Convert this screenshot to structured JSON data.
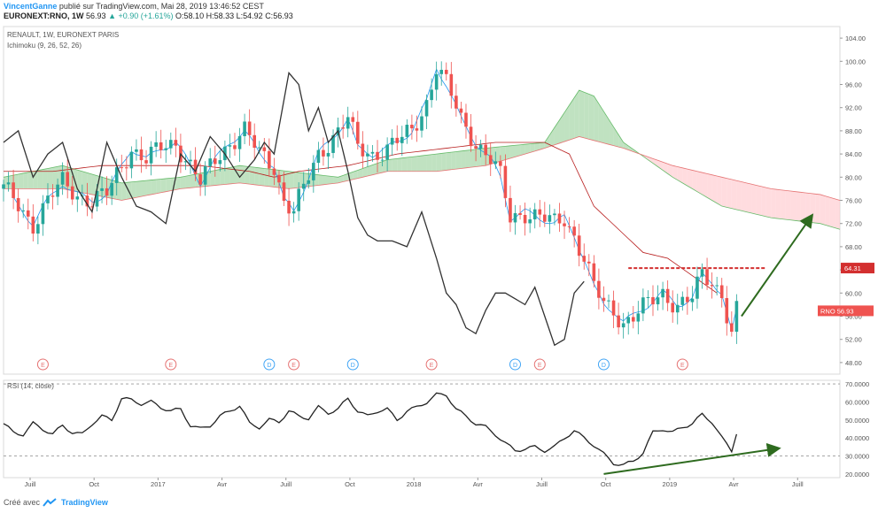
{
  "header": {
    "author": "VincentGanne",
    "published": "publié sur TradingView.com, Mai 28, 2019 13:46:52 CEST",
    "symbol": "EURONEXT:RNO, 1W",
    "price": "56.93",
    "change": "▲ +0.90 (+1.61%)",
    "open": "O:58.10",
    "high": "H:58.33",
    "low": "L:54.92",
    "close": "C:56.93"
  },
  "main_pane": {
    "instrument": "RENAULT, 1W, EURONEXT PARIS",
    "indicator": "Ichimoku (9, 26, 52, 26)"
  },
  "rsi_pane": {
    "label": "RSI (14, close)"
  },
  "footer": {
    "created_with": "Créé avec",
    "brand": "TradingView"
  },
  "colors": {
    "up": "#26a69a",
    "down": "#ef5350",
    "cloud_bull": "#a5d6a7",
    "cloud_bear": "#ffcdd2",
    "lagging": "#333333",
    "conversion": "#2196f3",
    "base": "#b71c1c",
    "arrow": "#2e6b1f",
    "resistance": "#d32f2f"
  },
  "chart_data": [
    {
      "type": "candlestick",
      "title": "RENAULT, 1W, EURONEXT PARIS",
      "ylim": [
        46,
        106
      ],
      "price_ticks": [
        "104.00",
        "100.00",
        "96.00",
        "92.00",
        "88.00",
        "84.00",
        "80.00",
        "76.00",
        "72.00",
        "68.00",
        "64.00",
        "60.00",
        "56.00",
        "52.00",
        "48.00"
      ],
      "price_tick_values": [
        104,
        100,
        96,
        92,
        88,
        84,
        80,
        76,
        72,
        68,
        64,
        60,
        56,
        52,
        48
      ],
      "x_labels": [
        "Juill",
        "Oct",
        "2017",
        "Avr",
        "Juill",
        "Oct",
        "2018",
        "Avr",
        "Juill",
        "Oct",
        "2019",
        "Avr",
        "Juill",
        "Oct"
      ],
      "x_label_weeks": [
        0,
        13,
        26,
        39,
        52,
        65,
        78,
        91,
        104,
        117,
        130,
        143,
        156,
        169
      ],
      "resistance": {
        "value": 64.31,
        "label": "64.31",
        "from_week": 127,
        "to_week": 155
      },
      "last_price": {
        "value": 56.93,
        "label": "RNO  56.93"
      },
      "events": [
        {
          "type": "E",
          "week": 8
        },
        {
          "type": "E",
          "week": 34
        },
        {
          "type": "D",
          "week": 54
        },
        {
          "type": "E",
          "week": 59
        },
        {
          "type": "D",
          "week": 71
        },
        {
          "type": "E",
          "week": 87
        },
        {
          "type": "D",
          "week": 104
        },
        {
          "type": "E",
          "week": 109
        },
        {
          "type": "D",
          "week": 122
        },
        {
          "type": "E",
          "week": 138
        }
      ],
      "anchors": {
        "close": [
          [
            0,
            78
          ],
          [
            3,
            75
          ],
          [
            6,
            72
          ],
          [
            9,
            76
          ],
          [
            12,
            79
          ],
          [
            15,
            77
          ],
          [
            18,
            76
          ],
          [
            21,
            77
          ],
          [
            24,
            82
          ],
          [
            26,
            85
          ],
          [
            29,
            83
          ],
          [
            32,
            85
          ],
          [
            35,
            86
          ],
          [
            38,
            82
          ],
          [
            40,
            79
          ],
          [
            43,
            83
          ],
          [
            46,
            86
          ],
          [
            49,
            88
          ],
          [
            52,
            84
          ],
          [
            55,
            82
          ],
          [
            57,
            76
          ],
          [
            59,
            74
          ],
          [
            61,
            78
          ],
          [
            64,
            84
          ],
          [
            67,
            87
          ],
          [
            70,
            90
          ],
          [
            72,
            85
          ],
          [
            75,
            84
          ],
          [
            78,
            85
          ],
          [
            80,
            86
          ],
          [
            83,
            88
          ],
          [
            86,
            93
          ],
          [
            88,
            99
          ],
          [
            90,
            96
          ],
          [
            93,
            90
          ],
          [
            96,
            86
          ],
          [
            99,
            83
          ],
          [
            101,
            80
          ],
          [
            103,
            73
          ],
          [
            106,
            74
          ],
          [
            109,
            73
          ],
          [
            112,
            72
          ],
          [
            114,
            73
          ],
          [
            116,
            70
          ],
          [
            118,
            66
          ],
          [
            120,
            61
          ],
          [
            122,
            58
          ],
          [
            124,
            57
          ],
          [
            126,
            55
          ],
          [
            128,
            56
          ],
          [
            131,
            58
          ],
          [
            134,
            60
          ],
          [
            137,
            58
          ],
          [
            140,
            59
          ],
          [
            142,
            63
          ],
          [
            144,
            62
          ],
          [
            146,
            60
          ],
          [
            148,
            53
          ],
          [
            149,
            57
          ]
        ],
        "kijun": [
          [
            0,
            81
          ],
          [
            10,
            81
          ],
          [
            20,
            82
          ],
          [
            30,
            82
          ],
          [
            40,
            82
          ],
          [
            50,
            81
          ],
          [
            55,
            80
          ],
          [
            60,
            81
          ],
          [
            70,
            82
          ],
          [
            80,
            84
          ],
          [
            90,
            85
          ],
          [
            100,
            86
          ],
          [
            110,
            86
          ],
          [
            115,
            84
          ],
          [
            120,
            75
          ],
          [
            125,
            71
          ],
          [
            130,
            67
          ],
          [
            135,
            66
          ],
          [
            140,
            63
          ],
          [
            145,
            60
          ]
        ],
        "cloud_a": [
          [
            0,
            80
          ],
          [
            12,
            82
          ],
          [
            24,
            79
          ],
          [
            36,
            80
          ],
          [
            48,
            82
          ],
          [
            58,
            81
          ],
          [
            68,
            80
          ],
          [
            78,
            83
          ],
          [
            88,
            84
          ],
          [
            98,
            85
          ],
          [
            110,
            86
          ],
          [
            117,
            95
          ],
          [
            120,
            94
          ],
          [
            126,
            86
          ],
          [
            136,
            80
          ],
          [
            146,
            75
          ],
          [
            156,
            73
          ],
          [
            166,
            72
          ],
          [
            170,
            71
          ]
        ],
        "cloud_b": [
          [
            0,
            78
          ],
          [
            12,
            78
          ],
          [
            24,
            76
          ],
          [
            36,
            78
          ],
          [
            48,
            79
          ],
          [
            58,
            78
          ],
          [
            68,
            79
          ],
          [
            78,
            81
          ],
          [
            88,
            81
          ],
          [
            98,
            82
          ],
          [
            110,
            85
          ],
          [
            117,
            87
          ],
          [
            126,
            85
          ],
          [
            136,
            82
          ],
          [
            146,
            80
          ],
          [
            156,
            78
          ],
          [
            166,
            77
          ],
          [
            170,
            76
          ]
        ],
        "lagging": [
          [
            0,
            86
          ],
          [
            3,
            88
          ],
          [
            6,
            80
          ],
          [
            9,
            84
          ],
          [
            12,
            86
          ],
          [
            15,
            78
          ],
          [
            18,
            74
          ],
          [
            21,
            86
          ],
          [
            24,
            80
          ],
          [
            27,
            75
          ],
          [
            30,
            74
          ],
          [
            33,
            72
          ],
          [
            36,
            84
          ],
          [
            39,
            81
          ],
          [
            42,
            87
          ],
          [
            45,
            84
          ],
          [
            48,
            80
          ],
          [
            51,
            83
          ],
          [
            53,
            86
          ],
          [
            55,
            84
          ],
          [
            58,
            98
          ],
          [
            60,
            96
          ],
          [
            62,
            88
          ],
          [
            64,
            92
          ],
          [
            66,
            86
          ],
          [
            68,
            88
          ],
          [
            70,
            81
          ],
          [
            72,
            73
          ],
          [
            74,
            70
          ],
          [
            76,
            69
          ],
          [
            79,
            69
          ],
          [
            82,
            68
          ],
          [
            85,
            74
          ],
          [
            88,
            66
          ],
          [
            90,
            60
          ],
          [
            92,
            58
          ],
          [
            94,
            54
          ],
          [
            96,
            53
          ],
          [
            98,
            57
          ],
          [
            100,
            60
          ],
          [
            102,
            60
          ],
          [
            104,
            59
          ],
          [
            106,
            58
          ],
          [
            108,
            61
          ],
          [
            110,
            56
          ],
          [
            112,
            51
          ],
          [
            114,
            52
          ],
          [
            116,
            60
          ],
          [
            118,
            62
          ]
        ]
      }
    },
    {
      "type": "line",
      "title": "RSI (14, close)",
      "ylim": [
        18,
        72
      ],
      "ticks": [
        "70.0000",
        "60.0000",
        "50.0000",
        "40.0000",
        "30.0000",
        "20.0000"
      ],
      "tick_values": [
        70,
        60,
        50,
        40,
        30,
        20
      ],
      "levels": [
        70,
        30
      ],
      "anchors": [
        [
          0,
          48
        ],
        [
          2,
          43
        ],
        [
          4,
          42
        ],
        [
          6,
          48
        ],
        [
          8,
          45
        ],
        [
          10,
          42
        ],
        [
          12,
          47
        ],
        [
          14,
          43
        ],
        [
          16,
          42
        ],
        [
          18,
          48
        ],
        [
          20,
          52
        ],
        [
          22,
          50
        ],
        [
          24,
          62
        ],
        [
          26,
          61
        ],
        [
          28,
          59
        ],
        [
          30,
          60
        ],
        [
          32,
          57
        ],
        [
          34,
          55
        ],
        [
          36,
          56
        ],
        [
          38,
          47
        ],
        [
          40,
          45
        ],
        [
          42,
          47
        ],
        [
          44,
          52
        ],
        [
          46,
          55
        ],
        [
          48,
          58
        ],
        [
          50,
          48
        ],
        [
          52,
          46
        ],
        [
          54,
          50
        ],
        [
          56,
          49
        ],
        [
          58,
          55
        ],
        [
          60,
          52
        ],
        [
          62,
          51
        ],
        [
          64,
          57
        ],
        [
          66,
          54
        ],
        [
          68,
          56
        ],
        [
          70,
          62
        ],
        [
          72,
          55
        ],
        [
          74,
          52
        ],
        [
          76,
          55
        ],
        [
          78,
          56
        ],
        [
          80,
          50
        ],
        [
          82,
          55
        ],
        [
          84,
          57
        ],
        [
          86,
          60
        ],
        [
          88,
          64
        ],
        [
          90,
          64
        ],
        [
          92,
          56
        ],
        [
          94,
          52
        ],
        [
          96,
          48
        ],
        [
          98,
          46
        ],
        [
          100,
          42
        ],
        [
          102,
          37
        ],
        [
          104,
          33
        ],
        [
          106,
          34
        ],
        [
          108,
          35
        ],
        [
          110,
          33
        ],
        [
          112,
          35
        ],
        [
          114,
          40
        ],
        [
          116,
          44
        ],
        [
          118,
          40
        ],
        [
          120,
          36
        ],
        [
          122,
          31
        ],
        [
          124,
          26
        ],
        [
          126,
          25
        ],
        [
          128,
          27
        ],
        [
          130,
          32
        ],
        [
          132,
          43
        ],
        [
          134,
          45
        ],
        [
          136,
          43
        ],
        [
          138,
          46
        ],
        [
          140,
          48
        ],
        [
          142,
          53
        ],
        [
          144,
          49
        ],
        [
          146,
          40
        ],
        [
          148,
          33
        ],
        [
          149,
          43
        ]
      ]
    }
  ]
}
